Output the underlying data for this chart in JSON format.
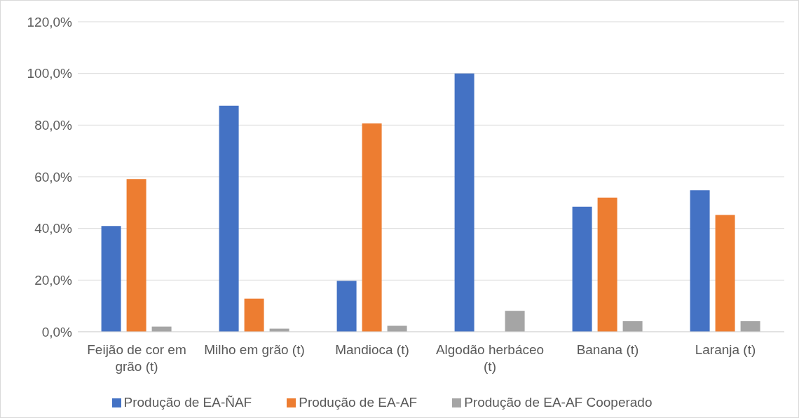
{
  "chart_data": {
    "type": "bar",
    "categories": [
      "Feijão de cor em grão (t)",
      "Milho em grão (t)",
      "Mandioca (t)",
      "Algodão herbáceo (t)",
      "Banana (t)",
      "Laranja (t)"
    ],
    "series": [
      {
        "name": "Produção de EA-ÑAF",
        "color": "#4472c4",
        "values": [
          40.9,
          87.5,
          19.7,
          100.0,
          48.4,
          54.8
        ]
      },
      {
        "name": "Produção de EA-AF",
        "color": "#ed7d31",
        "values": [
          59.1,
          12.8,
          80.6,
          null,
          51.9,
          45.2
        ]
      },
      {
        "name": "Produção de EA-AF Cooperado",
        "color": "#a5a5a5",
        "values": [
          2.0,
          1.2,
          2.3,
          8.1,
          4.1,
          4.1
        ]
      }
    ],
    "ylim": [
      0,
      120
    ],
    "yticks": [
      {
        "value": 0,
        "label": "0,0%"
      },
      {
        "value": 20,
        "label": "20,0%"
      },
      {
        "value": 40,
        "label": "40,0%"
      },
      {
        "value": 60,
        "label": "60,0%"
      },
      {
        "value": 80,
        "label": "80,0%"
      },
      {
        "value": 100,
        "label": "100,0%"
      },
      {
        "value": 120,
        "label": "120,0%"
      }
    ],
    "grid": "y",
    "legend": "bottom"
  }
}
